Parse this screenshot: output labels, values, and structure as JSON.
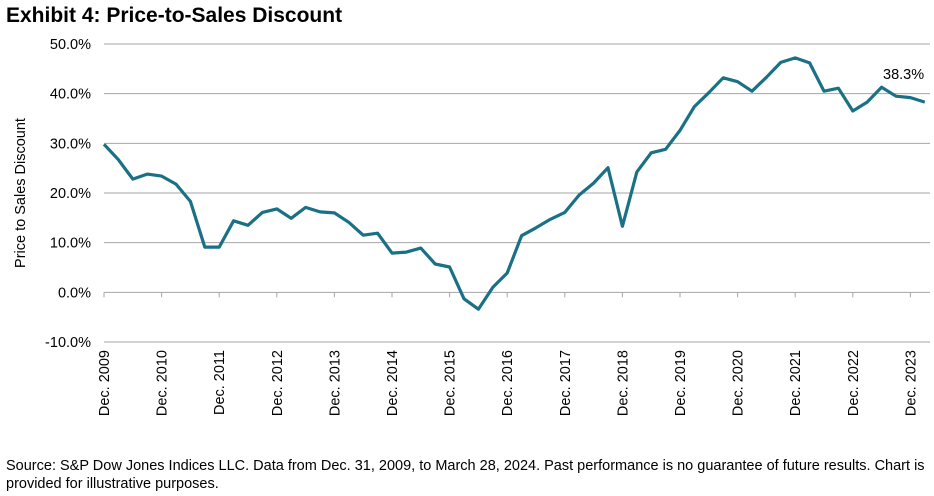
{
  "title": "Exhibit 4: Price-to-Sales Discount",
  "footnote": "Source: S&P Dow Jones Indices LLC. Data from Dec. 31, 2009, to March 28, 2024. Past performance is no guarantee of future results. Chart is provided for illustrative purposes.",
  "chart_data": {
    "type": "line",
    "title": "Exhibit 4: Price-to-Sales Discount",
    "xlabel": "",
    "ylabel": "Price to Sales Discount",
    "ylim": [
      -10,
      50
    ],
    "yticks": [
      50,
      40,
      30,
      20,
      10,
      0,
      -10
    ],
    "ytick_labels": [
      "50.0%",
      "40.0%",
      "30.0%",
      "20.0%",
      "10.0%",
      "0.0%",
      "-10.0%"
    ],
    "xtick_labels": [
      "Dec. 2009",
      "Dec. 2010",
      "Dec. 2011",
      "Dec. 2012",
      "Dec. 2013",
      "Dec. 2014",
      "Dec. 2015",
      "Dec. 2016",
      "Dec. 2017",
      "Dec. 2018",
      "Dec. 2019",
      "Dec. 2020",
      "Dec. 2021",
      "Dec. 2022",
      "Dec. 2023"
    ],
    "grid": "horizontal",
    "line_color": "#1a7085",
    "frequency": "quarterly",
    "start": "Dec. 2009",
    "end": "Mar. 2024",
    "series": [
      {
        "name": "Price-to-Sales Discount",
        "values": [
          29.8,
          26.7,
          22.8,
          23.8,
          23.4,
          21.8,
          18.3,
          9.1,
          9.1,
          14.4,
          13.5,
          16.1,
          16.8,
          14.9,
          17.1,
          16.2,
          16.0,
          14.1,
          11.5,
          11.9,
          7.9,
          8.1,
          8.9,
          5.7,
          5.1,
          -1.3,
          -3.4,
          1.0,
          3.9,
          11.4,
          13.0,
          14.7,
          16.1,
          19.6,
          22.0,
          25.1,
          13.3,
          24.2,
          28.1,
          28.8,
          32.6,
          37.4,
          40.2,
          43.2,
          42.4,
          40.5,
          43.3,
          46.3,
          47.2,
          46.2,
          40.5,
          41.1,
          36.5,
          38.3,
          41.3,
          39.5,
          39.2,
          38.3
        ]
      }
    ],
    "annotations": [
      {
        "text": "38.3%",
        "target": "last-point"
      }
    ]
  }
}
